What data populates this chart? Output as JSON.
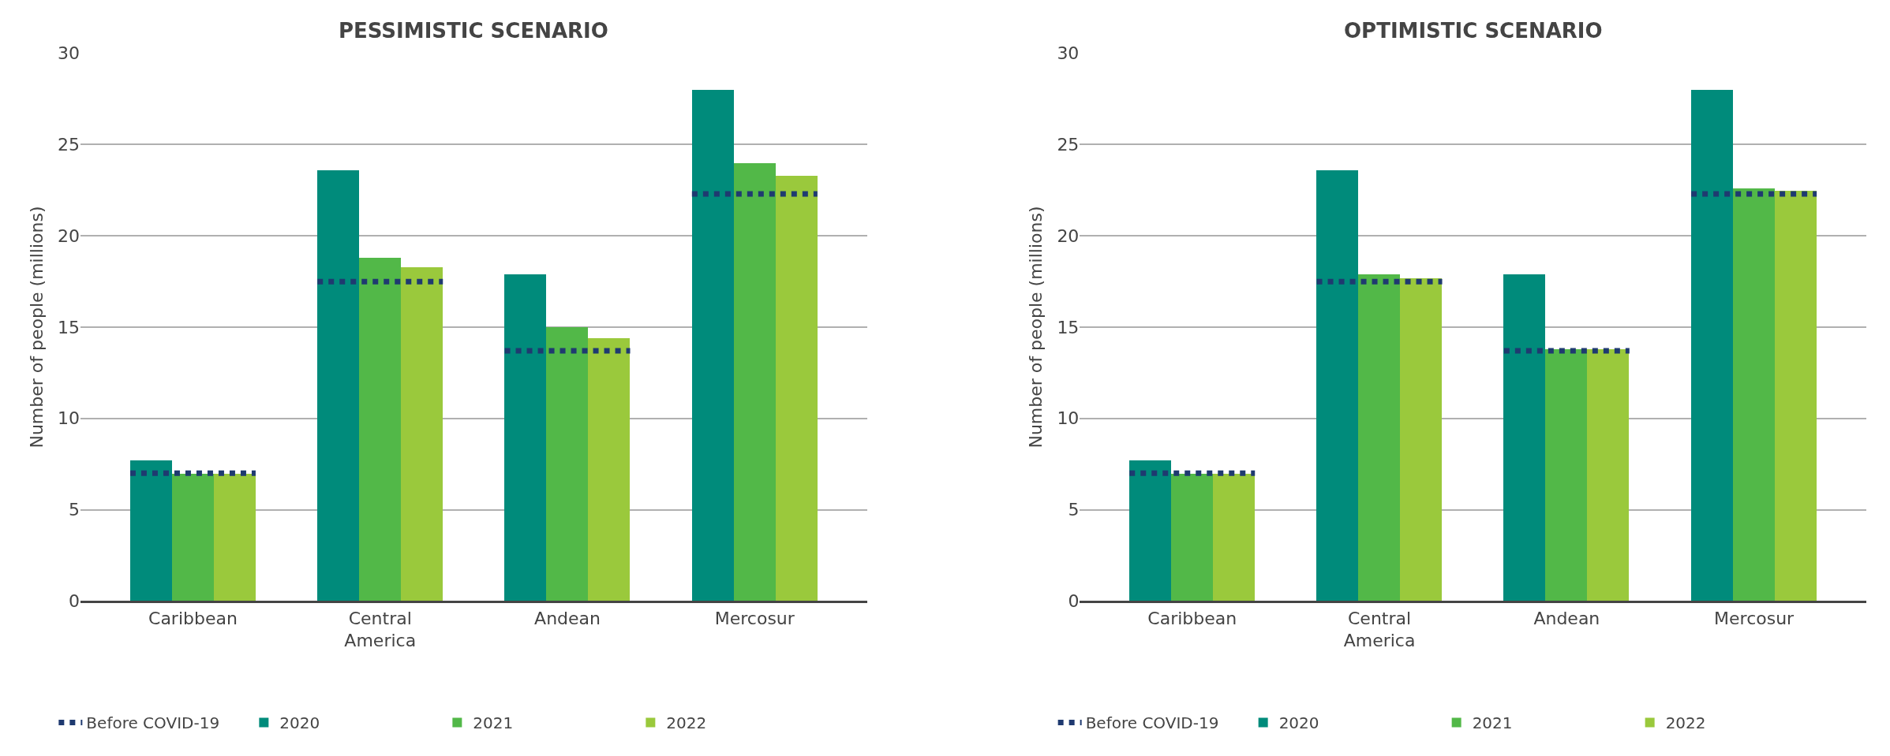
{
  "chart_data": [
    {
      "type": "bar",
      "title": "PESSIMISTIC SCENARIO",
      "ylabel": "Number of people (millions)",
      "categories": [
        "Caribbean",
        "Central America",
        "Andean",
        "Mercosur"
      ],
      "series": [
        {
          "name": "2020",
          "color": "#008b7b",
          "values": [
            7.7,
            23.6,
            17.9,
            28.0
          ]
        },
        {
          "name": "2021",
          "color": "#52b848",
          "values": [
            7.0,
            18.8,
            15.0,
            24.0
          ]
        },
        {
          "name": "2022",
          "color": "#9ac93c",
          "values": [
            7.0,
            18.3,
            14.4,
            23.3
          ]
        }
      ],
      "ref_lines": [
        {
          "axis": "y",
          "value": 7.0,
          "label": "Before COVID-19",
          "color": "#1f3a70",
          "line_style": "dotted"
        },
        {
          "axis": "y",
          "value": 17.5,
          "color": "#1f3a70",
          "line_style": "dotted"
        },
        {
          "axis": "y",
          "value": 13.7,
          "color": "#1f3a70",
          "line_style": "dotted"
        },
        {
          "axis": "y",
          "value": 22.3,
          "color": "#1f3a70",
          "line_style": "dotted"
        }
      ],
      "ylim": [
        0,
        30
      ],
      "yticks": [
        0,
        5,
        10,
        15,
        20,
        25,
        30
      ],
      "grid": "y",
      "legend": "bottom"
    },
    {
      "type": "bar",
      "title": "OPTIMISTIC SCENARIO",
      "ylabel": "Number of people (millions)",
      "categories": [
        "Caribbean",
        "Central America",
        "Andean",
        "Mercosur"
      ],
      "series": [
        {
          "name": "2020",
          "color": "#008b7b",
          "values": [
            7.7,
            23.6,
            17.9,
            28.0
          ]
        },
        {
          "name": "2021",
          "color": "#52b848",
          "values": [
            7.0,
            17.9,
            13.8,
            22.6
          ]
        },
        {
          "name": "2022",
          "color": "#9ac93c",
          "values": [
            7.0,
            17.7,
            13.8,
            22.5
          ]
        }
      ],
      "ref_lines": [
        {
          "axis": "y",
          "value": 7.0,
          "label": "Before COVID-19",
          "color": "#1f3a70",
          "line_style": "dotted"
        },
        {
          "axis": "y",
          "value": 17.5,
          "color": "#1f3a70",
          "line_style": "dotted"
        },
        {
          "axis": "y",
          "value": 13.7,
          "color": "#1f3a70",
          "line_style": "dotted"
        },
        {
          "axis": "y",
          "value": 22.3,
          "color": "#1f3a70",
          "line_style": "dotted"
        }
      ],
      "ylim": [
        0,
        30
      ],
      "yticks": [
        0,
        5,
        10,
        15,
        20,
        25,
        30
      ],
      "grid": "y",
      "legend": "bottom"
    }
  ]
}
